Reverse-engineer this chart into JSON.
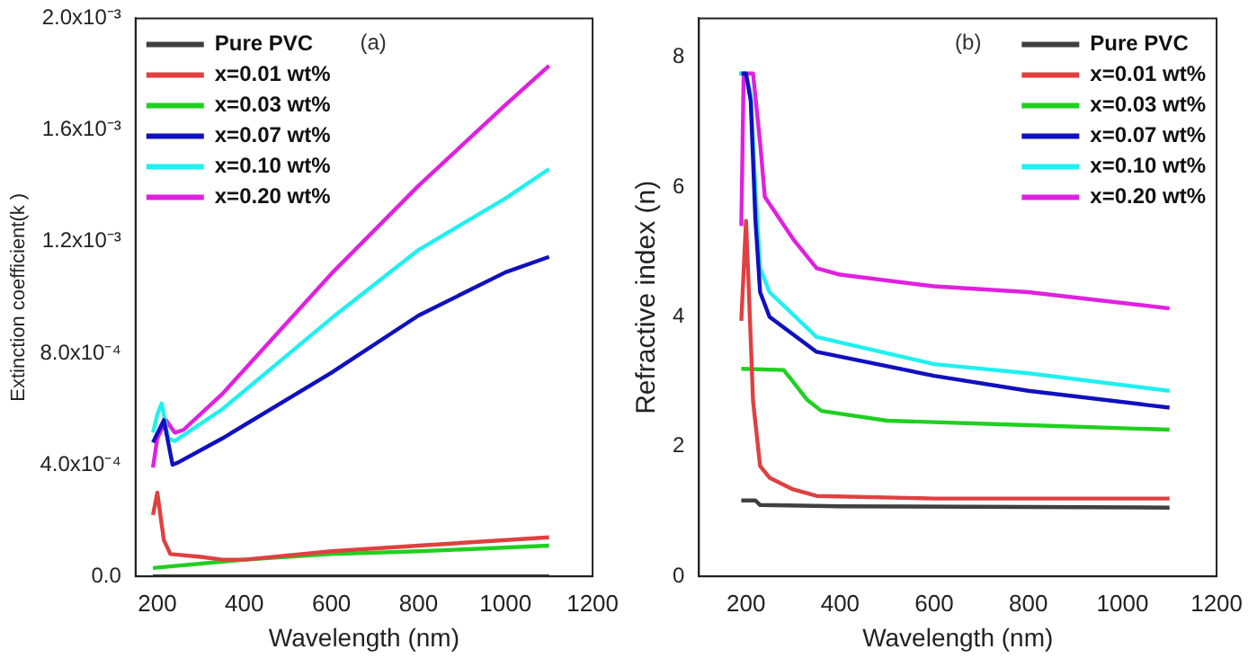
{
  "chart_data": [
    {
      "type": "line",
      "annotations": [
        "(a)"
      ],
      "xlabel": "Wavelength (nm)",
      "ylabel": "Extinction coefficient(k )",
      "xlim": [
        150,
        1200
      ],
      "xticks": [
        200,
        400,
        600,
        800,
        1000,
        1200
      ],
      "ylim": [
        0,
        0.002
      ],
      "yticks": [
        {
          "value": 0,
          "label": "0.0"
        },
        {
          "value": 0.0004,
          "label": "4.0x10⁻⁴"
        },
        {
          "value": 0.0008,
          "label": "8.0x10⁻⁴"
        },
        {
          "value": 0.0012,
          "label": "1.2x10⁻³"
        },
        {
          "value": 0.0016,
          "label": "1.6x10⁻³"
        },
        {
          "value": 0.002,
          "label": "2.0x10⁻³"
        }
      ],
      "legend": "top left",
      "grid": false,
      "marker": "none",
      "series": [
        {
          "name": "Pure PVC",
          "color": "#404040",
          "x": [
            190,
            400,
            800,
            1100
          ],
          "values": [
            0,
            0,
            0,
            0
          ]
        },
        {
          "name": "x=0.01 wt%",
          "color": "#e04040",
          "x": [
            190,
            200,
            215,
            230,
            300,
            350,
            400,
            600,
            800,
            1100
          ],
          "values": [
            0.00022,
            0.0003,
            0.00013,
            8e-05,
            7e-05,
            6e-05,
            6e-05,
            9e-05,
            0.00011,
            0.00014
          ]
        },
        {
          "name": "x=0.03 wt%",
          "color": "#20d020",
          "x": [
            190,
            400,
            600,
            800,
            1100
          ],
          "values": [
            3e-05,
            6e-05,
            8e-05,
            9e-05,
            0.00011
          ]
        },
        {
          "name": "x=0.07 wt%",
          "color": "#1010c0",
          "x": [
            190,
            215,
            235,
            250,
            350,
            600,
            800,
            1000,
            1100
          ],
          "values": [
            0.00048,
            0.00056,
            0.0004,
            0.00041,
            0.000495,
            0.00073,
            0.000935,
            0.00109,
            0.001145
          ]
        },
        {
          "name": "x=0.10 wt%",
          "color": "#20f0f0",
          "x": [
            190,
            200,
            210,
            225,
            240,
            350,
            600,
            800,
            1000,
            1100
          ],
          "values": [
            0.000515,
            0.00058,
            0.00062,
            0.000495,
            0.000485,
            0.0006,
            0.000925,
            0.00117,
            0.001355,
            0.00146
          ]
        },
        {
          "name": "x=0.20 wt%",
          "color": "#e020e0",
          "x": [
            190,
            200,
            220,
            240,
            260,
            350,
            600,
            800,
            1000,
            1100
          ],
          "values": [
            0.00039,
            0.000495,
            0.00056,
            0.000515,
            0.000525,
            0.000655,
            0.001085,
            0.0014,
            0.00169,
            0.00183
          ]
        }
      ]
    },
    {
      "type": "line",
      "annotations": [
        "(b)"
      ],
      "xlabel": "Wavelength (nm)",
      "ylabel": "Refractive index (n)",
      "xlim": [
        100,
        1200
      ],
      "xticks": [
        200,
        400,
        600,
        800,
        1000,
        1200
      ],
      "ylim": [
        0,
        8.6
      ],
      "yticks": [
        0,
        2,
        4,
        6,
        8
      ],
      "legend": "top right",
      "grid": false,
      "marker": "none",
      "series": [
        {
          "name": "Pure PVC",
          "color": "#404040",
          "x": [
            190,
            220,
            230,
            400,
            1100
          ],
          "values": [
            1.17,
            1.17,
            1.1,
            1.08,
            1.06
          ]
        },
        {
          "name": "x=0.01 wt%",
          "color": "#e04040",
          "x": [
            190,
            200,
            205,
            215,
            230,
            250,
            300,
            350,
            600,
            1100
          ],
          "values": [
            3.94,
            5.48,
            4.6,
            2.7,
            1.7,
            1.52,
            1.34,
            1.24,
            1.2,
            1.2
          ]
        },
        {
          "name": "x=0.03 wt%",
          "color": "#20d020",
          "x": [
            190,
            280,
            300,
            330,
            360,
            500,
            800,
            1100
          ],
          "values": [
            3.2,
            3.18,
            3.0,
            2.72,
            2.55,
            2.4,
            2.33,
            2.26
          ]
        },
        {
          "name": "x=0.07 wt%",
          "color": "#1010c0",
          "x": [
            190,
            200,
            210,
            220,
            230,
            250,
            350,
            600,
            800,
            1100
          ],
          "values": [
            7.75,
            7.75,
            7.33,
            5.5,
            4.38,
            4.0,
            3.46,
            3.09,
            2.86,
            2.6
          ]
        },
        {
          "name": "x=0.10 wt%",
          "color": "#20f0f0",
          "x": [
            185,
            200,
            210,
            220,
            230,
            250,
            350,
            600,
            800,
            1100
          ],
          "values": [
            7.75,
            7.75,
            7.42,
            5.95,
            4.75,
            4.38,
            3.69,
            3.27,
            3.13,
            2.86
          ]
        },
        {
          "name": "x=0.20 wt%",
          "color": "#e020e0",
          "x": [
            190,
            195,
            215,
            230,
            240,
            300,
            350,
            400,
            600,
            800,
            1100
          ],
          "values": [
            5.4,
            7.75,
            7.75,
            6.68,
            5.85,
            5.2,
            4.75,
            4.65,
            4.47,
            4.38,
            4.13
          ]
        }
      ]
    }
  ]
}
